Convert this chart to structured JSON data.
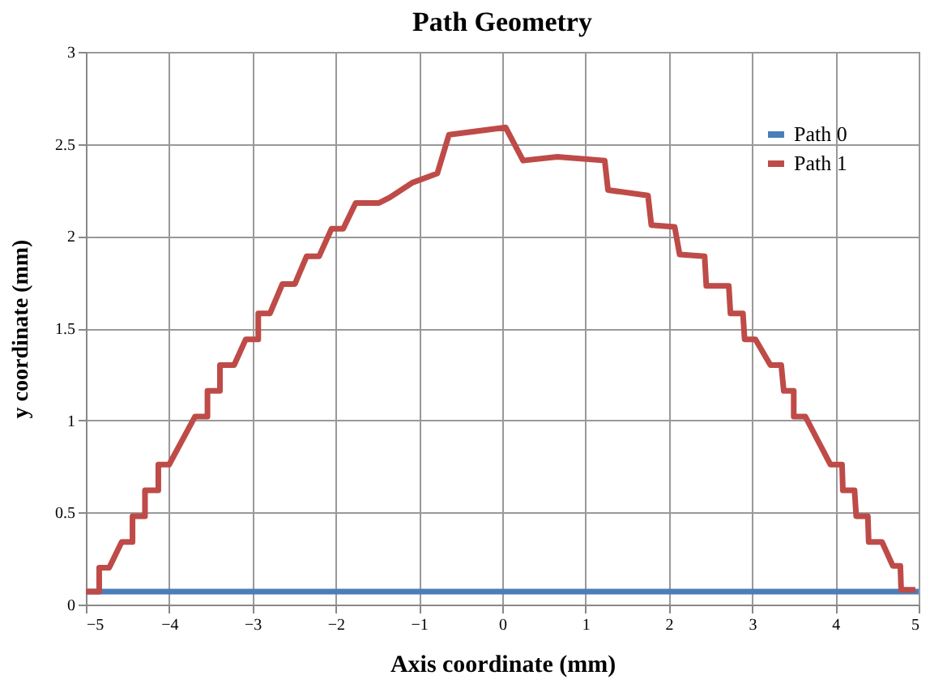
{
  "chart_data": {
    "type": "line",
    "title": "Path Geometry",
    "xlabel": "Axis coordinate (mm)",
    "ylabel": "y coordinate (mm)",
    "xlim": [
      -5,
      5
    ],
    "xticks": [
      -5,
      -4,
      -3,
      -2,
      -1,
      0,
      1,
      2,
      3,
      4,
      5
    ],
    "ylim": [
      0,
      3
    ],
    "yticks": [
      0,
      0.5,
      1,
      1.5,
      2,
      2.5,
      3
    ],
    "grid": true,
    "legend": "top right",
    "marker": "none",
    "line_style": "solid",
    "series": [
      {
        "name": "Path 0",
        "color": "#4a7ebb",
        "x": [
          -5,
          5
        ],
        "values": [
          0.07,
          0.07
        ]
      },
      {
        "name": "Path 1",
        "color": "#be4b48",
        "x": [
          -5,
          -4.84,
          -4.84,
          -4.72,
          -4.57,
          -4.44,
          -4.44,
          -4.29,
          -4.29,
          -4.13,
          -4.13,
          -4.0,
          -3.69,
          -3.54,
          -3.54,
          -3.39,
          -3.39,
          -3.22,
          -3.08,
          -2.93,
          -2.93,
          -2.79,
          -2.64,
          -2.49,
          -2.35,
          -2.2,
          -2.05,
          -1.91,
          -1.76,
          -1.48,
          -1.35,
          -1.08,
          -0.78,
          -0.64,
          -0.3,
          0.04,
          0.25,
          0.66,
          1.23,
          1.27,
          1.75,
          1.79,
          2.07,
          2.13,
          2.43,
          2.45,
          2.72,
          2.74,
          2.89,
          2.91,
          3.04,
          3.22,
          3.35,
          3.38,
          3.5,
          3.5,
          3.64,
          3.94,
          4.08,
          4.09,
          4.23,
          4.25,
          4.39,
          4.4,
          4.56,
          4.69,
          4.78,
          4.79,
          4.96
        ],
        "values": [
          0.07,
          0.07,
          0.2,
          0.2,
          0.34,
          0.34,
          0.48,
          0.48,
          0.62,
          0.62,
          0.76,
          0.76,
          1.02,
          1.02,
          1.16,
          1.16,
          1.3,
          1.3,
          1.44,
          1.44,
          1.58,
          1.58,
          1.74,
          1.74,
          1.89,
          1.89,
          2.04,
          2.04,
          2.18,
          2.18,
          2.21,
          2.29,
          2.34,
          2.55,
          2.57,
          2.59,
          2.41,
          2.43,
          2.41,
          2.25,
          2.22,
          2.06,
          2.05,
          1.9,
          1.89,
          1.73,
          1.73,
          1.58,
          1.58,
          1.44,
          1.44,
          1.3,
          1.3,
          1.16,
          1.16,
          1.02,
          1.02,
          0.76,
          0.76,
          0.62,
          0.62,
          0.48,
          0.48,
          0.34,
          0.34,
          0.21,
          0.21,
          0.08,
          0.08
        ]
      }
    ]
  }
}
